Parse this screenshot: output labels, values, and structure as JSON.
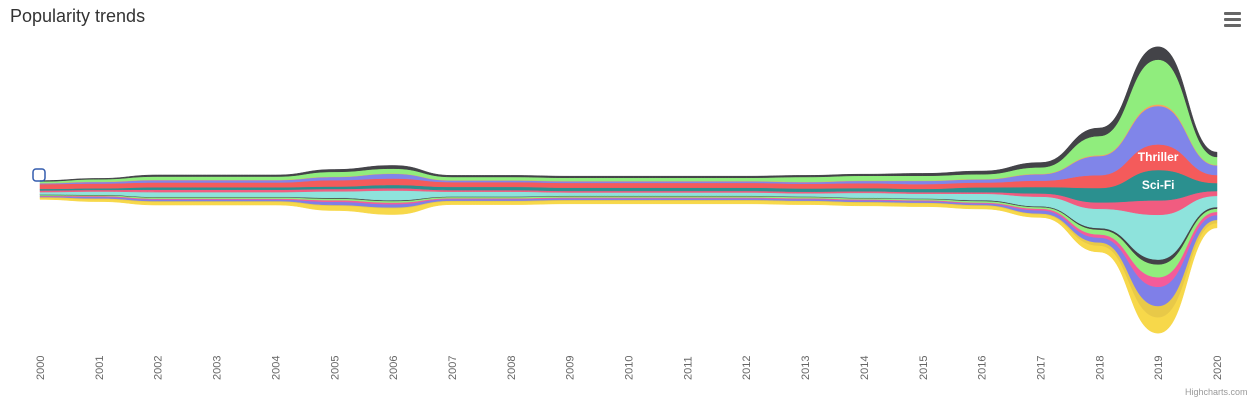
{
  "title": "Popularity trends",
  "credits": "Highcharts.com",
  "menu_icon": "hamburger-menu-icon",
  "chart_data": {
    "type": "area",
    "subtype": "streamgraph",
    "title": "Popularity trends",
    "xlabel": "",
    "ylabel": "",
    "x": [
      "2000",
      "2001",
      "2002",
      "2003",
      "2004",
      "2005",
      "2006",
      "2007",
      "2008",
      "2009",
      "2010",
      "2011",
      "2012",
      "2013",
      "2014",
      "2015",
      "2016",
      "2017",
      "2018",
      "2019",
      "2020"
    ],
    "legend": "none",
    "series": [
      {
        "color": "#f7d84a",
        "values": [
          1,
          1.5,
          2,
          2,
          2,
          3,
          4,
          2,
          2,
          2,
          2,
          2,
          2,
          2,
          2,
          2,
          2,
          2,
          4,
          10,
          3
        ]
      },
      {
        "color": "#e8c948",
        "values": [
          0.5,
          0.5,
          0.5,
          0.5,
          0.5,
          0.5,
          0.5,
          0.5,
          0.5,
          0.5,
          0.5,
          0.5,
          0.5,
          0.5,
          0.5,
          0.5,
          0.5,
          0.5,
          2,
          7,
          2
        ]
      },
      {
        "color": "#7f7fe8",
        "values": [
          0.5,
          1,
          1,
          1,
          1,
          2,
          2,
          1,
          1,
          1,
          1,
          1,
          1,
          1,
          1,
          1,
          1,
          2,
          3,
          12,
          3
        ]
      },
      {
        "color": "#f45b9a",
        "values": [
          0.3,
          0.5,
          0.5,
          0.5,
          0.5,
          1,
          1,
          0.5,
          0.5,
          0.5,
          0.5,
          0.5,
          0.5,
          0.5,
          0.5,
          0.5,
          0.5,
          1,
          2,
          6,
          2
        ]
      },
      {
        "color": "#90ed7d",
        "values": [
          0.5,
          0.5,
          0.8,
          0.8,
          0.8,
          1,
          1,
          0.8,
          0.8,
          0.8,
          0.8,
          0.8,
          0.8,
          0.8,
          0.8,
          0.8,
          1,
          1,
          3,
          8,
          2
        ]
      },
      {
        "color": "#434348",
        "values": [
          0.3,
          0.3,
          0.3,
          0.3,
          0.3,
          0.5,
          0.5,
          0.3,
          0.3,
          0.3,
          0.3,
          0.3,
          0.3,
          0.3,
          0.3,
          0.3,
          0.5,
          0.5,
          1,
          3,
          1
        ]
      },
      {
        "color": "#8ee3dc",
        "values": [
          1.5,
          2,
          3,
          3,
          3,
          4,
          6,
          3,
          3,
          2,
          2,
          2,
          2,
          2,
          3,
          3,
          4,
          6,
          12,
          28,
          7
        ]
      },
      {
        "color": "#f15c80",
        "values": [
          1,
          1,
          1.5,
          1.5,
          1.5,
          1.5,
          1.5,
          1,
          1,
          1,
          1,
          1,
          1,
          1,
          1,
          1,
          1,
          2,
          4,
          9,
          3
        ]
      },
      {
        "name": "Sci-Fi",
        "color": "#2b908f",
        "values": [
          1,
          1,
          1.5,
          1.5,
          1.5,
          1.5,
          2,
          2,
          2,
          2,
          2,
          2,
          2,
          2,
          2,
          2,
          3,
          4,
          9,
          19,
          5
        ]
      },
      {
        "name": "Thriller",
        "color": "#f45b5b",
        "values": [
          3,
          3,
          3,
          3,
          3,
          4,
          4,
          3,
          3,
          3,
          3,
          3,
          3,
          3,
          3,
          3,
          3,
          4,
          8,
          16,
          5
        ]
      },
      {
        "color": "#8085e9",
        "values": [
          0.5,
          1,
          1.5,
          1.5,
          1.5,
          2,
          3,
          1,
          1,
          1,
          1,
          1,
          1,
          1,
          1.5,
          2,
          2,
          4,
          12,
          24,
          6
        ]
      },
      {
        "color": "#f7a35c",
        "values": [
          0.2,
          0.2,
          0.2,
          0.2,
          0.2,
          0.2,
          0.2,
          0.2,
          0.2,
          0.2,
          0.2,
          0.2,
          0.2,
          0.2,
          0.2,
          0.2,
          0.2,
          0.3,
          0.5,
          1,
          0.3
        ]
      },
      {
        "color": "#90ed7d",
        "values": [
          1,
          1.5,
          2,
          2,
          2,
          3,
          3,
          2,
          2,
          2,
          2,
          2,
          2,
          3,
          3,
          3,
          3,
          4,
          12,
          28,
          5
        ]
      },
      {
        "color": "#434348",
        "values": [
          0.5,
          0.5,
          1,
          1,
          1,
          1.5,
          2,
          1,
          1,
          1,
          1,
          1,
          1,
          1,
          1,
          1.5,
          2,
          3,
          5,
          8,
          3
        ]
      }
    ],
    "annotations": [
      "Thriller",
      "Sci-Fi"
    ]
  }
}
